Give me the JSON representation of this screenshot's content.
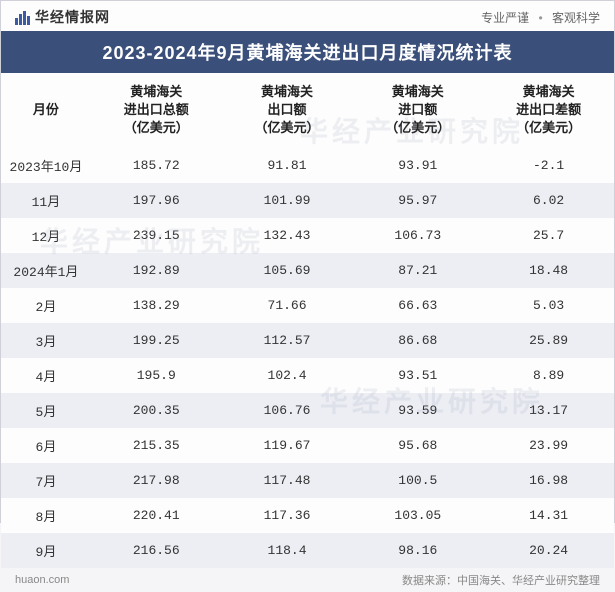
{
  "header": {
    "brand": "华经情报网",
    "tagline_a": "专业严谨",
    "tagline_b": "客观科学"
  },
  "title": "2023-2024年9月黄埔海关进出口月度情况统计表",
  "table": {
    "columns": [
      "月份",
      "黄埔海关\n进出口总额\n（亿美元）",
      "黄埔海关\n出口额\n（亿美元）",
      "黄埔海关\n进口额\n（亿美元）",
      "黄埔海关\n进出口差额\n（亿美元）"
    ],
    "rows": [
      {
        "month": "2023年10月",
        "total": "185.72",
        "export": "91.81",
        "import": "93.91",
        "diff": "-2.1",
        "neg": true
      },
      {
        "month": "11月",
        "total": "197.96",
        "export": "101.99",
        "import": "95.97",
        "diff": "6.02",
        "neg": false
      },
      {
        "month": "12月",
        "total": "239.15",
        "export": "132.43",
        "import": "106.73",
        "diff": "25.7",
        "neg": false
      },
      {
        "month": "2024年1月",
        "total": "192.89",
        "export": "105.69",
        "import": "87.21",
        "diff": "18.48",
        "neg": false
      },
      {
        "month": "2月",
        "total": "138.29",
        "export": "71.66",
        "import": "66.63",
        "diff": "5.03",
        "neg": false
      },
      {
        "month": "3月",
        "total": "199.25",
        "export": "112.57",
        "import": "86.68",
        "diff": "25.89",
        "neg": false
      },
      {
        "month": "4月",
        "total": "195.9",
        "export": "102.4",
        "import": "93.51",
        "diff": "8.89",
        "neg": false
      },
      {
        "month": "5月",
        "total": "200.35",
        "export": "106.76",
        "import": "93.59",
        "diff": "13.17",
        "neg": false
      },
      {
        "month": "6月",
        "total": "215.35",
        "export": "119.67",
        "import": "95.68",
        "diff": "23.99",
        "neg": false
      },
      {
        "month": "7月",
        "total": "217.98",
        "export": "117.48",
        "import": "100.5",
        "diff": "16.98",
        "neg": false
      },
      {
        "month": "8月",
        "total": "220.41",
        "export": "117.36",
        "import": "103.05",
        "diff": "14.31",
        "neg": false
      },
      {
        "month": "9月",
        "total": "216.56",
        "export": "118.4",
        "import": "98.16",
        "diff": "20.24",
        "neg": false
      }
    ]
  },
  "footer": {
    "site": "huaon.com",
    "source": "数据来源：中国海关、华经产业研究整理"
  },
  "watermark": "华经产业研究院",
  "colors": {
    "title_bg": "#3a4f7a",
    "row_even": "#eceef4",
    "row_odd": "#fdfdfd",
    "neg": "#2a7fb8"
  }
}
